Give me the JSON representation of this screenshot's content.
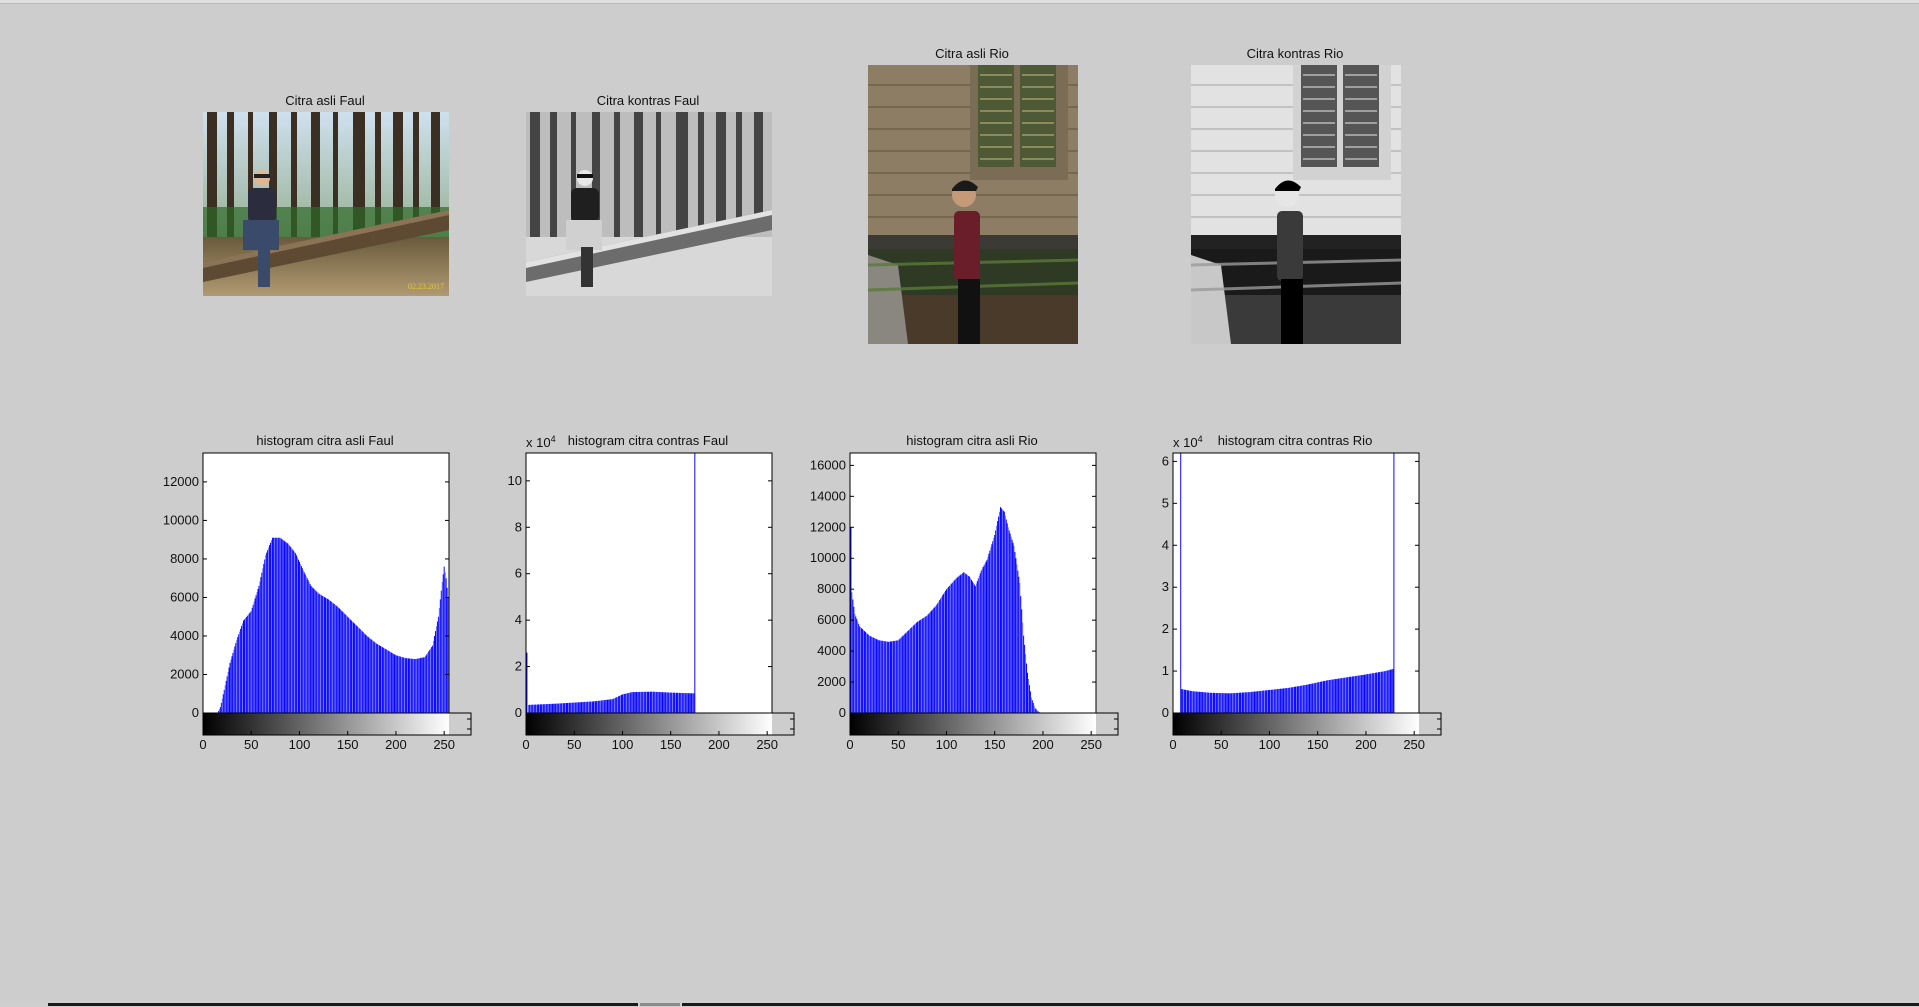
{
  "images": [
    {
      "title": "Citra asli Faul",
      "style": "color"
    },
    {
      "title": "Citra kontras Faul",
      "style": "gray"
    },
    {
      "title": "Citra asli Rio",
      "style": "color"
    },
    {
      "title": "Citra kontras Rio",
      "style": "gray"
    }
  ],
  "date_stamp": "02.23.2017",
  "colors": {
    "bar": "#0000ff",
    "background": "#cdcdcd",
    "axes_bg": "#ffffff"
  },
  "chart_data": [
    {
      "type": "bar",
      "title": "histogram citra asli Faul",
      "xlim": [
        0,
        255
      ],
      "ylim": [
        0,
        13500
      ],
      "xticks": [
        0,
        50,
        100,
        150,
        200,
        250
      ],
      "yticks": [
        0,
        2000,
        4000,
        6000,
        8000,
        10000,
        12000
      ],
      "exponent_label": "",
      "colorbar": "grayscale",
      "profile": [
        [
          0,
          0
        ],
        [
          15,
          0
        ],
        [
          18,
          300
        ],
        [
          22,
          1200
        ],
        [
          28,
          2600
        ],
        [
          35,
          3800
        ],
        [
          42,
          4800
        ],
        [
          50,
          5300
        ],
        [
          58,
          6600
        ],
        [
          65,
          8200
        ],
        [
          72,
          9100
        ],
        [
          80,
          9100
        ],
        [
          88,
          8800
        ],
        [
          96,
          8300
        ],
        [
          104,
          7400
        ],
        [
          112,
          6600
        ],
        [
          120,
          6200
        ],
        [
          130,
          5900
        ],
        [
          140,
          5500
        ],
        [
          150,
          5000
        ],
        [
          160,
          4500
        ],
        [
          170,
          4000
        ],
        [
          180,
          3600
        ],
        [
          190,
          3300
        ],
        [
          200,
          3000
        ],
        [
          210,
          2850
        ],
        [
          220,
          2800
        ],
        [
          230,
          2900
        ],
        [
          238,
          3500
        ],
        [
          244,
          5000
        ],
        [
          248,
          6800
        ],
        [
          250,
          7600
        ],
        [
          252,
          7000
        ],
        [
          255,
          5500
        ]
      ]
    },
    {
      "type": "bar",
      "title": "histogram citra contras Faul",
      "xlim": [
        0,
        255
      ],
      "ylim": [
        0,
        11.2
      ],
      "xticks": [
        0,
        50,
        100,
        150,
        200,
        250
      ],
      "yticks": [
        0,
        2,
        4,
        6,
        8,
        10
      ],
      "exponent_label": "x 10^4",
      "colorbar": "grayscale",
      "profile": [
        [
          0,
          0
        ],
        [
          1,
          2.6
        ],
        [
          2,
          0
        ],
        [
          3,
          0.35
        ],
        [
          30,
          0.4
        ],
        [
          50,
          0.45
        ],
        [
          70,
          0.5
        ],
        [
          90,
          0.6
        ],
        [
          100,
          0.8
        ],
        [
          110,
          0.9
        ],
        [
          130,
          0.92
        ],
        [
          150,
          0.88
        ],
        [
          170,
          0.85
        ],
        [
          174,
          0.85
        ],
        [
          175,
          11.2
        ],
        [
          176,
          0
        ],
        [
          255,
          0
        ]
      ]
    },
    {
      "type": "bar",
      "title": "histogram citra asli Rio",
      "xlim": [
        0,
        255
      ],
      "ylim": [
        0,
        16800
      ],
      "xticks": [
        0,
        50,
        100,
        150,
        200,
        250
      ],
      "yticks": [
        0,
        2000,
        4000,
        6000,
        8000,
        10000,
        12000,
        14000,
        16000
      ],
      "exponent_label": "",
      "colorbar": "grayscale",
      "profile": [
        [
          0,
          16000
        ],
        [
          1,
          12000
        ],
        [
          2,
          7800
        ],
        [
          5,
          6400
        ],
        [
          10,
          5600
        ],
        [
          20,
          5000
        ],
        [
          30,
          4700
        ],
        [
          40,
          4600
        ],
        [
          50,
          4700
        ],
        [
          60,
          5300
        ],
        [
          70,
          5900
        ],
        [
          80,
          6300
        ],
        [
          90,
          7000
        ],
        [
          100,
          8000
        ],
        [
          110,
          8700
        ],
        [
          118,
          9100
        ],
        [
          124,
          8800
        ],
        [
          130,
          8200
        ],
        [
          136,
          9200
        ],
        [
          142,
          9900
        ],
        [
          150,
          11500
        ],
        [
          156,
          13300
        ],
        [
          160,
          13000
        ],
        [
          164,
          12000
        ],
        [
          170,
          10800
        ],
        [
          176,
          8400
        ],
        [
          180,
          5000
        ],
        [
          184,
          2600
        ],
        [
          188,
          1000
        ],
        [
          192,
          300
        ],
        [
          196,
          50
        ],
        [
          200,
          0
        ],
        [
          255,
          0
        ]
      ]
    },
    {
      "type": "bar",
      "title": "histogram citra contras Rio",
      "xlim": [
        0,
        255
      ],
      "ylim": [
        0,
        6.2
      ],
      "xticks": [
        0,
        50,
        100,
        150,
        200,
        250
      ],
      "yticks": [
        0,
        1,
        2,
        3,
        4,
        5,
        6
      ],
      "exponent_label": "x 10^4",
      "colorbar": "grayscale",
      "profile": [
        [
          0,
          0
        ],
        [
          7,
          0
        ],
        [
          8,
          6.2
        ],
        [
          9,
          0.57
        ],
        [
          20,
          0.52
        ],
        [
          40,
          0.48
        ],
        [
          60,
          0.47
        ],
        [
          80,
          0.5
        ],
        [
          100,
          0.55
        ],
        [
          120,
          0.6
        ],
        [
          140,
          0.68
        ],
        [
          160,
          0.78
        ],
        [
          180,
          0.85
        ],
        [
          200,
          0.92
        ],
        [
          220,
          1.0
        ],
        [
          228,
          1.05
        ],
        [
          229,
          6.2
        ],
        [
          230,
          0
        ],
        [
          255,
          0
        ]
      ]
    }
  ]
}
